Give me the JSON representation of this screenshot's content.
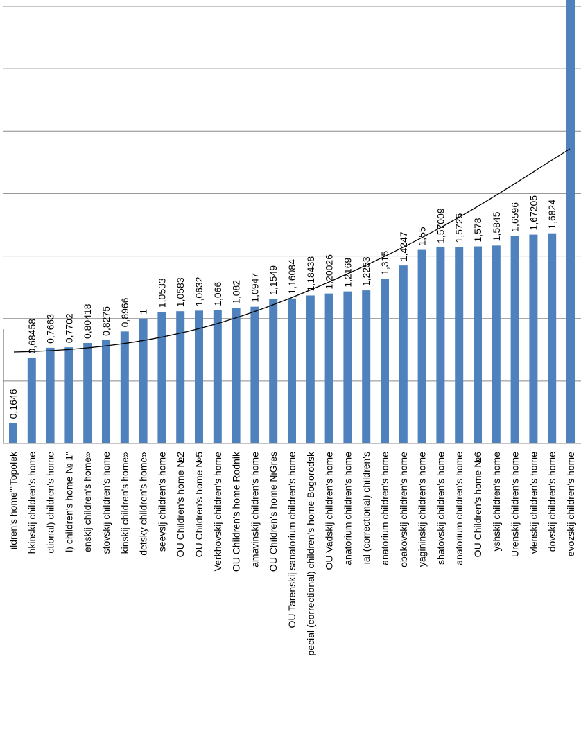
{
  "chart_data": {
    "type": "bar",
    "categories": [
      "ildren's home\"\"Topolek",
      "hkinskij children's home",
      "ctional) children's home",
      "l) children's home № 1\"",
      "enskij children's home»",
      "stovskij children's home",
      "kinskij children's home»",
      "detsky children's home»",
      "seevslj children's home",
      "OU Children's home №2",
      "OU Children's home №5",
      "Verkhovskij children's home",
      "OU Children's home Rodnik",
      "amavinskij children's home",
      "OU Children's home NiGres",
      "OU Tarenskij sanatorium children's home",
      "pecial (correctional) children's home Bogorodsk",
      "OU Vadskij children's home",
      "anatorium children's home",
      "ial (correctional) children's",
      "anatorium children's home",
      "obakovskij children's home",
      "yagininskij children's home",
      "shatovskij children's home",
      "anatorium children's home",
      "OU Children's home №6",
      "yshskij children's home",
      "Urenskij children's home",
      "vlenskij children's home",
      "dovskij children's home",
      "evozskij children's home"
    ],
    "values": [
      0.1646,
      0.68458,
      0.7663,
      0.7702,
      0.80418,
      0.8275,
      0.8966,
      1,
      1.0533,
      1.0583,
      1.0632,
      1.066,
      1.082,
      1.0947,
      1.1549,
      1.16084,
      1.18438,
      1.20026,
      1.2169,
      1.2253,
      1.315,
      1.4247,
      1.55,
      1.57009,
      1.5725,
      1.578,
      1.5845,
      1.6596,
      1.67205,
      1.6824,
      3.7
    ],
    "value_labels": [
      "0,1646",
      "0,68458",
      "0,7663",
      "0,7702",
      "0,80418",
      "0,8275",
      "0,8966",
      "1",
      "1,0533",
      "1,0583",
      "1,0632",
      "1,066",
      "1,082",
      "1,0947",
      "1,1549",
      "1,16084",
      "1,18438",
      "1,20026",
      "1,2169",
      "1,2253",
      "1,315",
      "1,4247",
      "1,55",
      "1,57009",
      "1,5725",
      "1,578",
      "1,5845",
      "1,6596",
      "1,67205",
      "1,6824",
      null
    ],
    "color": "#4f81bd",
    "ylim": [
      0,
      3.55
    ],
    "yticks": [
      0,
      0.5,
      1,
      1.5,
      2,
      2.5,
      3,
      3.5
    ],
    "grid": true
  }
}
